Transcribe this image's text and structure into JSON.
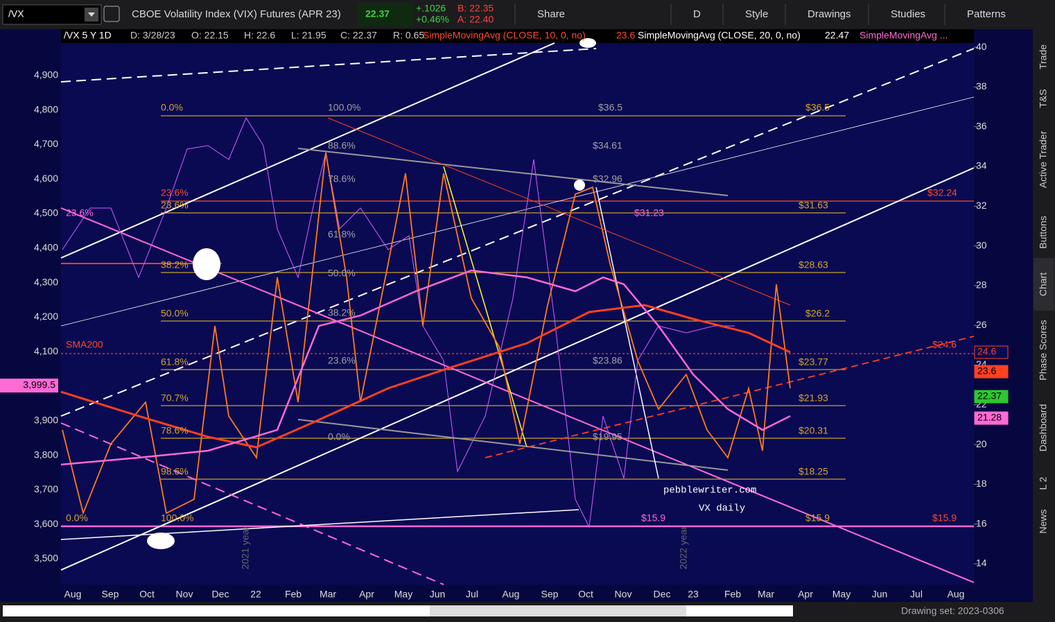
{
  "toolbar": {
    "symbol": "/VX",
    "description": "CBOE Volatility Index (VIX) Futures (APR 23)",
    "last": "22.37",
    "change": "+.1026",
    "change_pct": "+0.46%",
    "bid": "B: 22.35",
    "ask": "A: 22.40",
    "buttons": [
      "Share",
      "D",
      "Style",
      "Drawings",
      "Studies",
      "Patterns"
    ]
  },
  "header": [
    "/VX 5 Y 1D",
    "D: 3/28/23",
    "O: 22.15",
    "H: 22.6",
    "L: 21.95",
    "C: 22.37",
    "R: 0.65",
    "SimpleMovingAvg (CLOSE, 10, 0, no)",
    "23.6",
    "SimpleMovingAvg (CLOSE, 20, 0, no)",
    "22.47",
    "SimpleMovingAvg ..."
  ],
  "left_axis": [
    "3,500",
    "3,600",
    "3,700",
    "3,800",
    "3,900",
    "4,000",
    "4,100",
    "4,200",
    "4,300",
    "4,400",
    "4,500",
    "4,600",
    "4,700",
    "4,800",
    "4,900"
  ],
  "left_badge": "3,999.5",
  "right_axis": [
    14,
    16,
    18,
    20,
    22,
    24,
    26,
    28,
    30,
    32,
    34,
    36,
    38,
    40
  ],
  "price_badges": [
    "24.6",
    "23.6",
    "22.37",
    "21.28"
  ],
  "x_axis": [
    "Aug",
    "Sep",
    "Oct",
    "Nov",
    "Dec",
    "22",
    "Feb",
    "Mar",
    "Apr",
    "May",
    "Jun",
    "Jul",
    "Aug",
    "Sep",
    "Oct",
    "Nov",
    "Dec",
    "23",
    "Feb",
    "Mar",
    "Apr",
    "May",
    "Jun",
    "Jul",
    "Aug"
  ],
  "labels": [
    "0.0%",
    "23.6%",
    "23.6%",
    "38.2%",
    "50.0%",
    "61.8%",
    "70.7%",
    "78.6%",
    "98.6%",
    "100.0%",
    "0.0%",
    "23.6%",
    "SMA200",
    "100.0%",
    "88.6%",
    "78.6%",
    "61.8%",
    "50.0%",
    "38.2%",
    "23.6%",
    "0.0%",
    "$36.5",
    "$34.61",
    "$32.96",
    "$31.23",
    "$23.86",
    "$19.95",
    "$15.9",
    "$36.5",
    "$31.63",
    "$28.63",
    "$26.2",
    "$23.77",
    "$21.93",
    "$20.31",
    "$18.25",
    "$15.9",
    "$32.24",
    "$24.6",
    "$15.9"
  ],
  "watermark": [
    "pebblewriter.com",
    "VX daily"
  ],
  "year_marks": [
    "2021 year",
    "2022 year"
  ],
  "side_tabs": [
    "Trade",
    "T&S",
    "Active Trader",
    "Buttons",
    "Chart",
    "Phase Scores",
    "Dashboard",
    "L 2",
    "News"
  ],
  "status": "Drawing set: 2023-0306"
}
